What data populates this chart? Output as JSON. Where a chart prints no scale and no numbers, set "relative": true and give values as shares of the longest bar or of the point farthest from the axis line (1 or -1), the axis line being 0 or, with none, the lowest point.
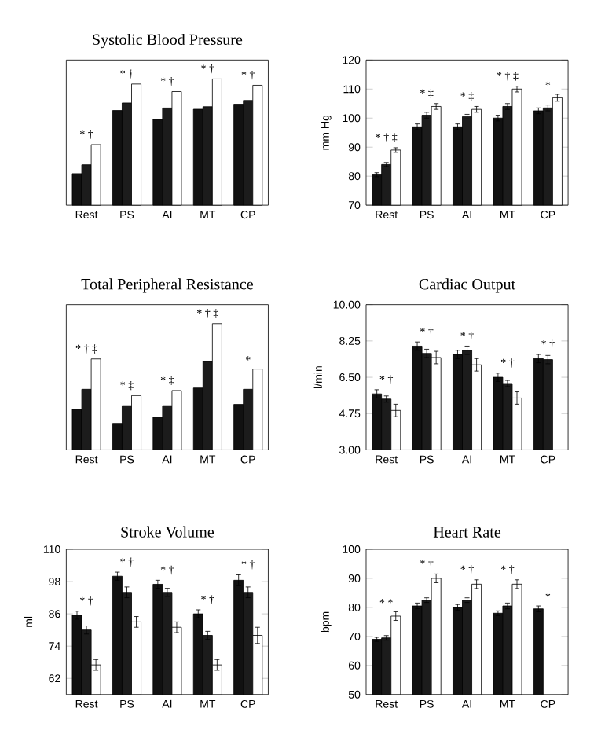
{
  "chart_data": [
    {
      "type": "bar",
      "title": "Systolic Blood Pressure",
      "categories": [
        "Rest",
        "PS",
        "AI",
        "MT",
        "CP"
      ],
      "relative": true,
      "series": [
        {
          "color": "#111111",
          "values": [
            0.25,
            0.75,
            0.68,
            0.76,
            0.8
          ]
        },
        {
          "color": "#1c1c1c",
          "values": [
            0.32,
            0.81,
            0.77,
            0.78,
            0.83
          ]
        },
        {
          "color": "#ffffff",
          "values": [
            0.48,
            0.96,
            0.9,
            1,
            0.95
          ]
        }
      ],
      "annotations": [
        "* †",
        "* †",
        "* †",
        "* †",
        "* †"
      ]
    },
    {
      "type": "bar",
      "ylabel": "mm Hg",
      "categories": [
        "Rest",
        "PS",
        "AI",
        "MT",
        "CP"
      ],
      "ylim": [
        70,
        120
      ],
      "yticks": [
        70,
        80,
        90,
        100,
        110,
        120
      ],
      "series": [
        {
          "color": "#111111",
          "values": [
            80.5,
            97,
            97,
            100,
            102.5
          ],
          "errors": [
            0.7,
            1,
            1,
            1,
            1
          ]
        },
        {
          "color": "#1c1c1c",
          "values": [
            84,
            101,
            100.5,
            104,
            103.5
          ],
          "errors": [
            0.7,
            1,
            0.8,
            1,
            1
          ]
        },
        {
          "color": "#ffffff",
          "values": [
            89,
            104,
            103,
            110,
            107
          ],
          "errors": [
            0.8,
            1,
            1,
            1,
            1.2
          ]
        }
      ],
      "annotations": [
        "* † ‡",
        "* ‡",
        "* ‡",
        "* † ‡",
        "*"
      ]
    },
    {
      "type": "bar",
      "title": "Total Peripheral Resistance",
      "categories": [
        "Rest",
        "PS",
        "AI",
        "MT",
        "CP"
      ],
      "relative": true,
      "series": [
        {
          "color": "#111111",
          "values": [
            0.32,
            0.21,
            0.26,
            0.49,
            0.36
          ]
        },
        {
          "color": "#1c1c1c",
          "values": [
            0.48,
            0.35,
            0.35,
            0.7,
            0.48
          ]
        },
        {
          "color": "#ffffff",
          "values": [
            0.72,
            0.43,
            0.47,
            1,
            0.64
          ]
        }
      ],
      "annotations": [
        "* † ‡",
        "* ‡",
        "* ‡",
        "* † ‡",
        "*"
      ]
    },
    {
      "type": "bar",
      "title": "Cardiac Output",
      "ylabel": "l/min",
      "categories": [
        "Rest",
        "PS",
        "AI",
        "MT",
        "CP"
      ],
      "ylim": [
        3,
        10
      ],
      "yticks": [
        {
          "value": 3,
          "label": "3.00"
        },
        {
          "value": 4.75,
          "label": "4.75"
        },
        {
          "value": 6.5,
          "label": "6.50"
        },
        {
          "value": 8.25,
          "label": "8.25"
        },
        {
          "value": 10,
          "label": "10.00"
        }
      ],
      "series": [
        {
          "color": "#111111",
          "values": [
            5.7,
            8.0,
            7.6,
            6.5,
            7.4
          ],
          "errors": [
            0.2,
            0.2,
            0.2,
            0.2,
            0.2
          ]
        },
        {
          "color": "#1c1c1c",
          "values": [
            5.45,
            7.65,
            7.8,
            6.2,
            7.35
          ],
          "errors": [
            0.15,
            0.2,
            0.2,
            0.15,
            0.2
          ]
        },
        {
          "color": "#ffffff",
          "values": [
            4.9,
            7.45,
            7.1,
            5.5,
            null
          ],
          "errors": [
            0.3,
            0.3,
            0.3,
            0.3,
            null
          ]
        }
      ],
      "annotations": [
        "* †",
        "* †",
        "* †",
        "* †",
        "* †"
      ]
    },
    {
      "type": "bar",
      "title": "Stroke Volume",
      "ylabel": "ml",
      "categories": [
        "Rest",
        "PS",
        "AI",
        "MT",
        "CP"
      ],
      "ylim": [
        56,
        110
      ],
      "yticks": [
        62,
        74,
        86,
        98,
        110
      ],
      "series": [
        {
          "color": "#111111",
          "values": [
            85.5,
            100,
            97,
            86,
            98.5
          ],
          "errors": [
            1.5,
            1.5,
            1.5,
            1.5,
            2
          ]
        },
        {
          "color": "#1c1c1c",
          "values": [
            80,
            94,
            94,
            78,
            94
          ],
          "errors": [
            1.5,
            2,
            1.5,
            1.5,
            2
          ]
        },
        {
          "color": "#ffffff",
          "values": [
            67,
            83,
            81,
            67,
            78
          ],
          "errors": [
            2,
            2,
            2,
            2,
            3
          ]
        }
      ],
      "annotations": [
        "* †",
        "* †",
        "* †",
        "* †",
        "* †"
      ]
    },
    {
      "type": "bar",
      "title": "Heart Rate",
      "ylabel": "bpm",
      "categories": [
        "Rest",
        "PS",
        "AI",
        "MT",
        "CP"
      ],
      "ylim": [
        50,
        100
      ],
      "yticks": [
        50,
        60,
        70,
        80,
        90,
        100
      ],
      "series": [
        {
          "color": "#111111",
          "values": [
            69,
            80.5,
            80,
            78,
            79.5
          ],
          "errors": [
            0.7,
            1,
            1,
            0.8,
            1
          ]
        },
        {
          "color": "#1c1c1c",
          "values": [
            69.5,
            82.5,
            82.5,
            80.5,
            null
          ],
          "errors": [
            0.8,
            0.8,
            0.8,
            1,
            null
          ]
        },
        {
          "color": "#ffffff",
          "values": [
            77,
            90,
            88,
            88,
            null
          ],
          "errors": [
            1.5,
            1.5,
            1.5,
            1.5,
            null
          ]
        }
      ],
      "annotations": [
        "* *",
        "* †",
        "* †",
        "* †",
        "*"
      ]
    }
  ]
}
